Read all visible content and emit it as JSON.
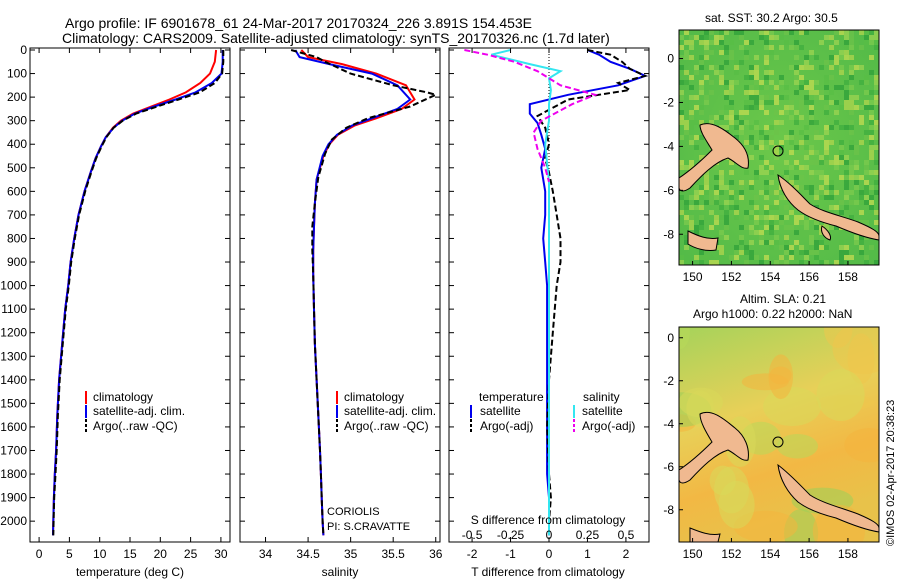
{
  "header": {
    "line1": "Argo profile: IF 6901678_61 24-Mar-2017 20170324_226 3.891S 154.453E",
    "line2": "Climatology: CARS2009. Satellite-adjusted climatology: synTS_20170326.nc (1.7d later)"
  },
  "colors": {
    "climatology": "#ff0000",
    "satellite": "#0000ee",
    "argo": "#000000",
    "sal_satellite": "#33e6f0",
    "sal_argo": "#ee00ee",
    "land": "#f0b990"
  },
  "chart_data": [
    {
      "type": "line",
      "id": "temperature",
      "xlabel": "temperature (deg C)",
      "ylabel": "",
      "xlim": [
        -1.5,
        31.5
      ],
      "ylim": [
        2080,
        0
      ],
      "xticks": [
        "0",
        "5",
        "10",
        "15",
        "20",
        "25",
        "30"
      ],
      "yticks": [
        "0",
        "100",
        "200",
        "300",
        "400",
        "500",
        "600",
        "700",
        "800",
        "900",
        "1000",
        "1100",
        "1200",
        "1300",
        "1400",
        "1500",
        "1600",
        "1700",
        "1800",
        "1900",
        "2000"
      ],
      "legend": [
        "climatology",
        "satellite-adj. clim.",
        "Argo(..raw -QC)"
      ],
      "series": [
        {
          "name": "climatology",
          "style": "solid",
          "color": "#ff0000",
          "x": [
            29.2,
            29.0,
            28.2,
            26.6,
            24.2,
            21.5,
            18.5,
            15.5,
            13.5,
            12.2,
            11.0,
            10.2,
            9.3,
            8.5,
            7.5,
            6.5,
            5.8,
            5.2,
            4.8,
            4.3,
            3.8,
            3.3,
            3.0,
            2.8,
            2.6,
            2.45,
            2.35,
            2.3
          ],
          "y": [
            0,
            50,
            100,
            140,
            180,
            210,
            240,
            270,
            300,
            330,
            370,
            410,
            460,
            520,
            600,
            700,
            800,
            900,
            1000,
            1100,
            1250,
            1400,
            1550,
            1700,
            1800,
            1900,
            2000,
            2060
          ]
        },
        {
          "name": "satellite-adj. clim.",
          "style": "solid",
          "color": "#0000ee",
          "x": [
            30.3,
            30.3,
            30.1,
            28.5,
            25.8,
            22.5,
            19.0,
            15.8,
            13.7,
            12.3,
            11.0,
            10.2,
            9.3,
            8.5,
            7.5,
            6.5,
            5.8,
            5.2,
            4.8,
            4.3,
            3.8,
            3.3,
            3.0,
            2.8,
            2.6,
            2.45,
            2.35,
            2.3
          ],
          "y": [
            0,
            50,
            100,
            140,
            180,
            210,
            240,
            270,
            300,
            330,
            370,
            410,
            460,
            520,
            600,
            700,
            800,
            900,
            1000,
            1100,
            1250,
            1400,
            1550,
            1700,
            1800,
            1900,
            2000,
            2060
          ]
        },
        {
          "name": "Argo(..raw -QC)",
          "style": "dashed",
          "color": "#000000",
          "x": [
            30.4,
            30.4,
            30.2,
            29.0,
            26.5,
            23.0,
            19.5,
            16.0,
            13.8,
            12.3,
            11.1,
            10.3,
            9.4,
            8.6,
            7.6,
            6.6,
            5.9,
            5.3,
            4.9,
            4.4,
            3.9,
            3.4,
            3.1,
            2.9,
            2.7,
            2.5,
            2.4,
            2.35
          ],
          "y": [
            0,
            50,
            100,
            140,
            180,
            210,
            240,
            270,
            300,
            330,
            370,
            410,
            460,
            520,
            600,
            700,
            800,
            900,
            1000,
            1100,
            1250,
            1400,
            1550,
            1700,
            1800,
            1900,
            2000,
            2060
          ]
        }
      ]
    },
    {
      "type": "line",
      "id": "salinity",
      "xlabel": "salinity",
      "xlim": [
        33.7,
        36.05
      ],
      "ylim": [
        2080,
        0
      ],
      "xticks": [
        "34",
        "34.5",
        "35",
        "35.5",
        "36"
      ],
      "legend": [
        "climatology",
        "satellite-adj. clim.",
        "Argo(..raw -QC)"
      ],
      "annotation": [
        "CORIOLIS",
        "PI: S.CRAVATTE"
      ],
      "series": [
        {
          "name": "climatology",
          "style": "solid",
          "color": "#ff0000",
          "x": [
            34.42,
            34.5,
            34.9,
            35.3,
            35.65,
            35.75,
            35.6,
            35.3,
            35.05,
            34.85,
            34.75,
            34.68,
            34.6,
            34.58,
            34.57,
            34.56,
            34.56,
            34.57,
            34.58,
            34.6,
            34.62,
            34.64,
            34.65,
            34.66,
            34.67,
            34.68
          ],
          "y": [
            0,
            30,
            60,
            100,
            150,
            210,
            250,
            290,
            320,
            360,
            400,
            450,
            550,
            650,
            750,
            850,
            950,
            1100,
            1250,
            1400,
            1550,
            1700,
            1800,
            1900,
            2000,
            2060
          ]
        },
        {
          "name": "satellite-adj. clim.",
          "style": "solid",
          "color": "#0000ee",
          "x": [
            34.35,
            34.4,
            34.75,
            35.25,
            35.55,
            35.7,
            35.55,
            35.25,
            35.02,
            34.84,
            34.74,
            34.67,
            34.6,
            34.58,
            34.57,
            34.56,
            34.56,
            34.57,
            34.58,
            34.6,
            34.62,
            34.64,
            34.65,
            34.66,
            34.67,
            34.68
          ],
          "y": [
            0,
            30,
            60,
            100,
            150,
            210,
            250,
            290,
            320,
            360,
            400,
            450,
            550,
            650,
            750,
            850,
            950,
            1100,
            1250,
            1400,
            1550,
            1700,
            1800,
            1900,
            2000,
            2060
          ]
        },
        {
          "name": "Argo(..raw -QC)",
          "style": "dashed",
          "color": "#000000",
          "x": [
            34.3,
            34.6,
            34.7,
            35.0,
            35.5,
            35.9,
            36.0,
            35.7,
            35.2,
            34.95,
            34.78,
            34.7,
            34.62,
            34.58,
            34.55,
            34.55,
            34.56,
            34.57,
            34.58,
            34.6,
            34.62,
            34.64,
            34.65,
            34.66,
            34.67,
            34.68
          ],
          "y": [
            0,
            30,
            50,
            100,
            150,
            180,
            190,
            240,
            290,
            330,
            380,
            440,
            540,
            650,
            750,
            850,
            950,
            1100,
            1250,
            1400,
            1550,
            1700,
            1800,
            1900,
            2000,
            2060
          ]
        }
      ]
    },
    {
      "type": "line",
      "id": "differences",
      "xlabel": "T difference from climatology",
      "xlabel_top": "S difference from climatology",
      "xlim": [
        -2.6,
        2.6
      ],
      "ylim": [
        2080,
        0
      ],
      "xticks_T": [
        "-2",
        "-1",
        "0",
        "1",
        "2"
      ],
      "xticks_S": [
        "-0.5",
        "-0.25",
        "0",
        "0.25",
        "0.5"
      ],
      "legend": {
        "temperature": {
          "title": "temperature",
          "items": [
            "satellite",
            "Argo(-adj)"
          ]
        },
        "salinity": {
          "title": "salinity",
          "items": [
            "satellite",
            "Argo(-adj)"
          ]
        }
      },
      "series": [
        {
          "name": "T satellite",
          "style": "solid",
          "color": "#0000ee",
          "x": [
            1.0,
            1.3,
            1.6,
            2.1,
            2.5,
            1.8,
            0.5,
            -0.5,
            -0.5,
            -0.3,
            -0.2,
            -0.1,
            -0.2,
            -0.1,
            -0.1,
            -0.15,
            -0.1,
            -0.05,
            -0.05,
            -0.05,
            -0.05,
            -0.05,
            0.0,
            0.0,
            0.0,
            0.0
          ],
          "y": [
            0,
            20,
            50,
            80,
            110,
            150,
            190,
            230,
            270,
            310,
            360,
            420,
            500,
            600,
            700,
            800,
            900,
            1000,
            1200,
            1400,
            1600,
            1800,
            1900,
            2000,
            2040,
            2060
          ]
        },
        {
          "name": "T Argo(-adj)",
          "style": "dashed",
          "color": "#000000",
          "x": [
            1.0,
            1.6,
            1.9,
            2.1,
            2.5,
            1.8,
            2.1,
            0.5,
            -0.3,
            -0.1,
            0.0,
            -0.1,
            0.0,
            0.1,
            0.2,
            0.3,
            0.3,
            0.2,
            0.1,
            0.0,
            -0.05,
            0.0,
            0.05,
            0.0,
            0.0,
            0.0
          ],
          "y": [
            0,
            20,
            50,
            80,
            110,
            140,
            170,
            210,
            280,
            330,
            400,
            460,
            520,
            600,
            700,
            800,
            900,
            1000,
            1200,
            1400,
            1600,
            1800,
            1900,
            2000,
            2040,
            2060
          ]
        },
        {
          "name": "S satellite",
          "style": "solid",
          "color": "#33e6f0",
          "x": [
            -1.0,
            -1.5,
            -0.5,
            0.3,
            0.0,
            0.05,
            0.0,
            0.0,
            -0.1,
            -0.05,
            0.0,
            0.0,
            0.0,
            0.0,
            0.0,
            0.0,
            0.0,
            0.0,
            0.0,
            0.0,
            0.0,
            0.0,
            0.0
          ],
          "y": [
            0,
            20,
            60,
            90,
            120,
            170,
            230,
            300,
            400,
            480,
            560,
            640,
            720,
            800,
            900,
            1000,
            1200,
            1400,
            1600,
            1800,
            1950,
            2040,
            2060
          ]
        },
        {
          "name": "S Argo(-adj)",
          "style": "dashed",
          "color": "#ee00ee",
          "x": [
            -2.2,
            -1.6,
            -0.9,
            -0.3,
            0.3,
            1.2,
            0.6,
            -0.2,
            -0.4,
            -0.3,
            -0.1,
            0.0
          ],
          "y": [
            0,
            20,
            50,
            90,
            150,
            190,
            230,
            300,
            350,
            420,
            500,
            560
          ]
        }
      ]
    }
  ],
  "maps": {
    "sst": {
      "title": "sat. SST: 30.2 Argo: 30.5",
      "yticks": [
        "0",
        "-2",
        "-4",
        "-6",
        "-8"
      ],
      "xticks": [
        "150",
        "152",
        "154",
        "156",
        "158"
      ]
    },
    "sla": {
      "title_line1": "Altim. SLA: 0.21",
      "title_line2": "Argo h1000: 0.22 h2000: NaN",
      "yticks": [
        "0",
        "-2",
        "-4",
        "-6",
        "-8"
      ],
      "xticks": [
        "150",
        "152",
        "154",
        "156",
        "158"
      ]
    }
  },
  "footer": {
    "credit": "©IMOS 02-Apr-2017 20:38:23"
  }
}
